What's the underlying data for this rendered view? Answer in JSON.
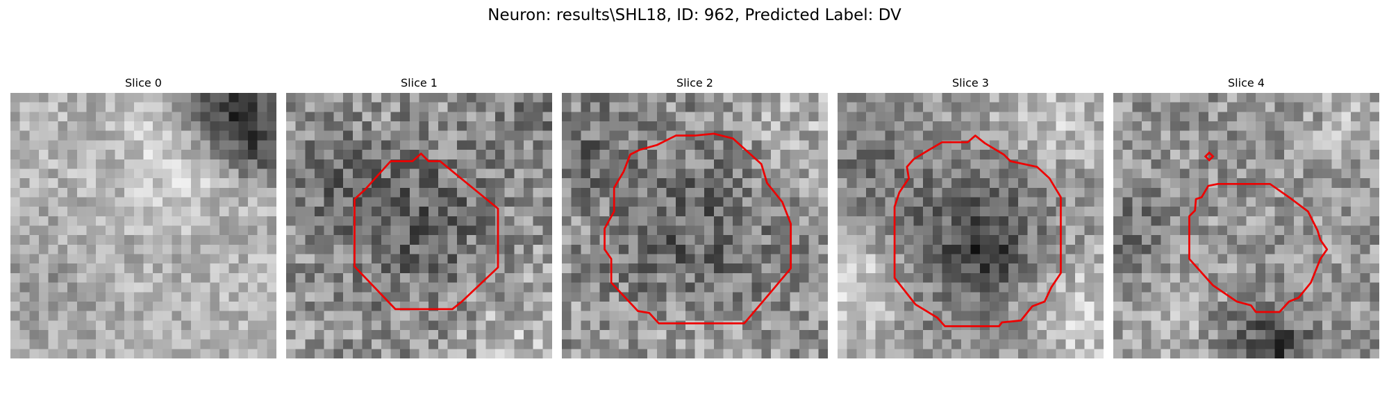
{
  "figure": {
    "title": "Neuron: results\\SHL18, ID: 962, Predicted Label: DV",
    "contour_color": "#ee0000",
    "grid_resolution": 28,
    "colormap": "gray"
  },
  "panels": [
    {
      "title": "Slice 0",
      "has_contour": false
    },
    {
      "title": "Slice 1",
      "has_contour": true
    },
    {
      "title": "Slice 2",
      "has_contour": true
    },
    {
      "title": "Slice 3",
      "has_contour": true
    },
    {
      "title": "Slice 4",
      "has_contour": true
    }
  ]
}
